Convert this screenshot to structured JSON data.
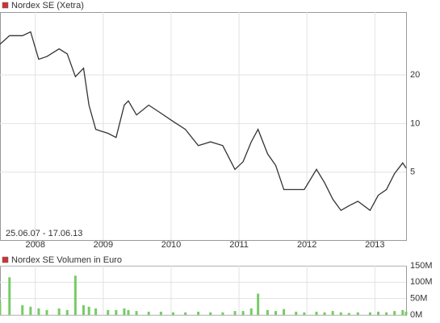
{
  "chart_data": [
    {
      "type": "line",
      "scale": "log",
      "grid": true,
      "legend": "top-left",
      "annotation": "25.06.07 - 17.06.13",
      "xlim": [
        2007.48,
        2013.46
      ],
      "xticks": [
        2008,
        2009,
        2010,
        2011,
        2012,
        2013
      ],
      "ylim": [
        1.9,
        49
      ],
      "yticks": [
        5,
        10,
        20
      ],
      "x": [
        2007.48,
        2007.62,
        2007.81,
        2007.93,
        2008.05,
        2008.17,
        2008.35,
        2008.47,
        2008.59,
        2008.71,
        2008.79,
        2008.89,
        2009.07,
        2009.19,
        2009.31,
        2009.37,
        2009.49,
        2009.67,
        2009.85,
        2010.03,
        2010.21,
        2010.4,
        2010.58,
        2010.76,
        2010.94,
        2011.06,
        2011.18,
        2011.28,
        2011.42,
        2011.54,
        2011.66,
        2011.84,
        2011.96,
        2012.14,
        2012.26,
        2012.38,
        2012.5,
        2012.62,
        2012.75,
        2012.93,
        2013.05,
        2013.17,
        2013.29,
        2013.41,
        2013.46
      ],
      "series": [
        {
          "name": "Nordex SE (Xetra)",
          "color": "#333333",
          "legend_color": "#cc3333",
          "values": [
            31,
            35,
            35,
            37,
            25,
            26,
            29,
            27,
            19.5,
            22,
            13,
            9.2,
            8.7,
            8.2,
            13,
            13.8,
            11.3,
            13,
            11.6,
            10.3,
            9.2,
            7.3,
            7.7,
            7.3,
            5.2,
            5.8,
            7.7,
            9.2,
            6.5,
            5.5,
            3.9,
            3.9,
            3.9,
            5.2,
            4.3,
            3.4,
            2.9,
            3.1,
            3.3,
            2.9,
            3.6,
            3.9,
            4.9,
            5.7,
            5.3
          ]
        }
      ]
    },
    {
      "type": "bar",
      "grid": true,
      "legend": "top-left",
      "xlim": [
        2007.48,
        2013.46
      ],
      "ylim": [
        0,
        150
      ],
      "yticks": [
        {
          "value": 0,
          "label": "0M"
        },
        {
          "value": 50,
          "label": "50M"
        },
        {
          "value": 100,
          "label": "100M"
        },
        {
          "value": 150,
          "label": "150M"
        }
      ],
      "x": [
        2007.48,
        2007.62,
        2007.81,
        2007.93,
        2008.05,
        2008.17,
        2008.35,
        2008.47,
        2008.59,
        2008.71,
        2008.79,
        2008.89,
        2009.07,
        2009.19,
        2009.31,
        2009.37,
        2009.49,
        2009.67,
        2009.85,
        2010.03,
        2010.21,
        2010.4,
        2010.58,
        2010.76,
        2010.94,
        2011.06,
        2011.18,
        2011.28,
        2011.42,
        2011.54,
        2011.66,
        2011.84,
        2011.96,
        2012.14,
        2012.26,
        2012.38,
        2012.5,
        2012.62,
        2012.75,
        2012.93,
        2013.05,
        2013.17,
        2013.29,
        2013.41,
        2013.46
      ],
      "series": [
        {
          "name": "Nordex SE Volumen in Euro",
          "color": "#77cc66",
          "legend_color": "#cc3333",
          "values": [
            40,
            115,
            30,
            25,
            20,
            15,
            20,
            15,
            120,
            30,
            25,
            20,
            15,
            15,
            20,
            15,
            12,
            10,
            10,
            8,
            8,
            10,
            8,
            8,
            12,
            12,
            20,
            65,
            15,
            12,
            18,
            10,
            8,
            10,
            8,
            12,
            8,
            6,
            8,
            8,
            10,
            8,
            12,
            15,
            10
          ]
        }
      ]
    }
  ]
}
